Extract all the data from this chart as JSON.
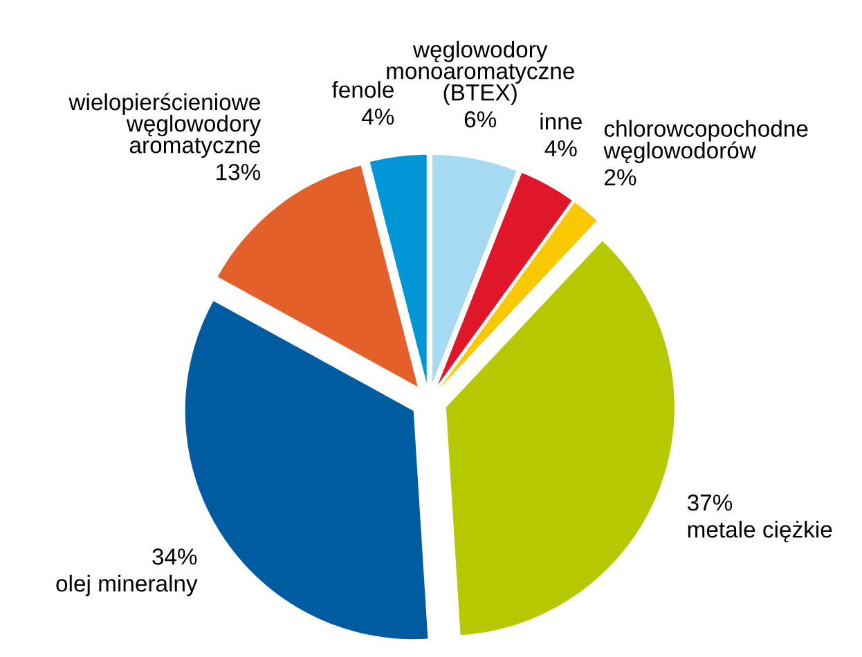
{
  "chart_data": {
    "type": "pie",
    "categories": [
      "węglowodory\nmonoaromatyczne\n(BTEX)",
      "inne",
      "chlorowcopochodne\nwęglowodorów",
      "metale ciężkie",
      "olej mineralny",
      "wielopierścieniowe\nwęglowodory\naromatyczne",
      "fenole"
    ],
    "values": [
      6,
      4,
      2,
      37,
      34,
      13,
      4
    ],
    "value_labels": [
      "6%",
      "4%",
      "2%",
      "37%",
      "34%",
      "13%",
      "4%"
    ],
    "colors": [
      "#a6d9f2",
      "#e0162b",
      "#f9c800",
      "#b5c800",
      "#005ca0",
      "#e4602b",
      "#0096d6"
    ]
  }
}
